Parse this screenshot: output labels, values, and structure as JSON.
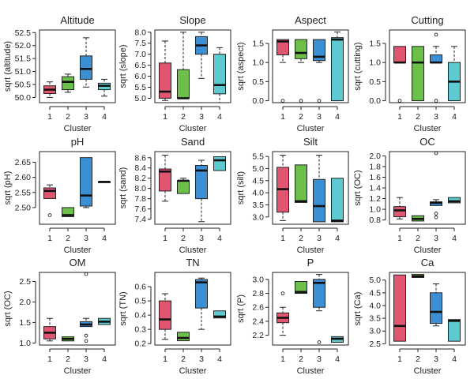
{
  "colors": {
    "1": "#e0556f",
    "2": "#6cc04a",
    "3": "#3d8fd4",
    "4": "#5dc9d1"
  },
  "chart_data": [
    {
      "type": "box",
      "title": "Altitude",
      "xlabel": "Cluster",
      "ylabel": "sqrt (altitude)",
      "categories": [
        "1",
        "2",
        "3",
        "4"
      ],
      "ylim": [
        49.8,
        52.6
      ],
      "yticks": [
        50.0,
        50.5,
        51.0,
        51.5,
        52.0,
        52.5
      ],
      "ytick_labels": [
        "50.0",
        "50.5",
        "51.0",
        "51.5",
        "52.0",
        "52.5"
      ],
      "boxes": [
        {
          "min": 50.0,
          "q1": 50.15,
          "median": 50.3,
          "q3": 50.45,
          "max": 50.6,
          "outliers": []
        },
        {
          "min": 50.2,
          "q1": 50.3,
          "median": 50.6,
          "q3": 50.8,
          "max": 50.9,
          "outliers": []
        },
        {
          "min": 50.4,
          "q1": 50.7,
          "median": 51.1,
          "q3": 51.6,
          "max": 52.3,
          "outliers": []
        },
        {
          "min": 50.05,
          "q1": 50.3,
          "median": 50.45,
          "q3": 50.55,
          "max": 50.7,
          "outliers": []
        }
      ]
    },
    {
      "type": "box",
      "title": "Slope",
      "xlabel": "Cluster",
      "ylabel": "sqrt (slope)",
      "categories": [
        "1",
        "2",
        "3",
        "4"
      ],
      "ylim": [
        4.8,
        8.1
      ],
      "yticks": [
        5.0,
        5.5,
        6.0,
        6.5,
        7.0,
        7.5,
        8.0
      ],
      "ytick_labels": [
        "5.0",
        "5.5",
        "6.0",
        "6.5",
        "7.0",
        "7.5",
        "8.0"
      ],
      "boxes": [
        {
          "min": 4.9,
          "q1": 5.0,
          "median": 5.3,
          "q3": 6.6,
          "max": 7.6,
          "outliers": []
        },
        {
          "min": 5.0,
          "q1": 5.0,
          "median": 5.0,
          "q3": 6.3,
          "max": 8.0,
          "outliers": []
        },
        {
          "min": 5.9,
          "q1": 7.0,
          "median": 7.4,
          "q3": 7.8,
          "max": 8.0,
          "outliers": []
        },
        {
          "min": 4.8,
          "q1": 5.2,
          "median": 5.6,
          "q3": 7.0,
          "max": 7.3,
          "outliers": []
        }
      ]
    },
    {
      "type": "box",
      "title": "Aspect",
      "xlabel": "Cluster",
      "ylabel": "sqrt (aspect)",
      "categories": [
        "1",
        "2",
        "3",
        "4"
      ],
      "ylim": [
        -0.05,
        1.85
      ],
      "yticks": [
        0.0,
        0.5,
        1.0,
        1.5
      ],
      "ytick_labels": [
        "0.0",
        "0.5",
        "1.0",
        "1.5"
      ],
      "boxes": [
        {
          "min": 1.0,
          "q1": 1.2,
          "median": 1.55,
          "q3": 1.6,
          "max": 1.6,
          "outliers": [
            0.0
          ]
        },
        {
          "min": 1.0,
          "q1": 1.1,
          "median": 1.25,
          "q3": 1.6,
          "max": 1.6,
          "outliers": [
            0.0
          ]
        },
        {
          "min": 1.0,
          "q1": 1.05,
          "median": 1.15,
          "q3": 1.6,
          "max": 1.6,
          "outliers": [
            0.0
          ]
        },
        {
          "min": 0.0,
          "q1": 0.0,
          "median": 1.6,
          "q3": 1.65,
          "max": 1.8,
          "outliers": []
        }
      ]
    },
    {
      "type": "box",
      "title": "Cutting",
      "xlabel": "Cluster",
      "ylabel": "sqrt (cutting)",
      "categories": [
        "1",
        "2",
        "3",
        "4"
      ],
      "ylim": [
        -0.05,
        1.85
      ],
      "yticks": [
        0.0,
        0.5,
        1.0,
        1.5
      ],
      "ytick_labels": [
        "0.0",
        "0.5",
        "1.0",
        "1.5"
      ],
      "boxes": [
        {
          "min": 1.0,
          "q1": 1.0,
          "median": 1.0,
          "q3": 1.42,
          "max": 1.42,
          "outliers": [
            0.0
          ]
        },
        {
          "min": 0.0,
          "q1": 0.0,
          "median": 1.0,
          "q3": 1.42,
          "max": 1.42,
          "outliers": []
        },
        {
          "min": 1.0,
          "q1": 1.0,
          "median": 1.0,
          "q3": 1.2,
          "max": 1.42,
          "outliers": [
            1.73,
            0.0
          ]
        },
        {
          "min": 0.0,
          "q1": 0.0,
          "median": 0.5,
          "q3": 1.0,
          "max": 1.42,
          "outliers": []
        }
      ]
    },
    {
      "type": "box",
      "title": "pH",
      "xlabel": "Cluster",
      "ylabel": "sqrt (pH)",
      "categories": [
        "1",
        "2",
        "3",
        "4"
      ],
      "ylim": [
        2.445,
        2.685
      ],
      "yticks": [
        2.5,
        2.55,
        2.6,
        2.65
      ],
      "ytick_labels": [
        "2.50",
        "2.55",
        "2.60",
        "2.65"
      ],
      "boxes": [
        {
          "min": 2.53,
          "q1": 2.53,
          "median": 2.555,
          "q3": 2.565,
          "max": 2.575,
          "outliers": [
            2.475
          ]
        },
        {
          "min": 2.47,
          "q1": 2.47,
          "median": 2.475,
          "q3": 2.5,
          "max": 2.5,
          "outliers": []
        },
        {
          "min": 2.5,
          "q1": 2.505,
          "median": 2.54,
          "q3": 2.665,
          "max": 2.665,
          "outliers": []
        },
        {
          "min": 2.585,
          "q1": 2.585,
          "median": 2.585,
          "q3": 2.585,
          "max": 2.585,
          "outliers": []
        }
      ]
    },
    {
      "type": "box",
      "title": "Sand",
      "xlabel": "Cluster",
      "ylabel": "sqrt (sand)",
      "categories": [
        "1",
        "2",
        "3",
        "4"
      ],
      "ylim": [
        7.3,
        8.72
      ],
      "yticks": [
        7.4,
        7.6,
        7.8,
        8.0,
        8.2,
        8.4,
        8.6
      ],
      "ytick_labels": [
        "7.4",
        "7.6",
        "7.8",
        "8.0",
        "8.2",
        "8.4",
        "8.6"
      ],
      "boxes": [
        {
          "min": 7.75,
          "q1": 7.95,
          "median": 8.33,
          "q3": 8.38,
          "max": 8.65,
          "outliers": []
        },
        {
          "min": 7.9,
          "q1": 7.9,
          "median": 8.15,
          "q3": 8.15,
          "max": 8.2,
          "outliers": []
        },
        {
          "min": 7.35,
          "q1": 7.8,
          "median": 8.35,
          "q3": 8.45,
          "max": 8.55,
          "outliers": []
        },
        {
          "min": 8.35,
          "q1": 8.35,
          "median": 8.55,
          "q3": 8.62,
          "max": 8.62,
          "outliers": []
        }
      ]
    },
    {
      "type": "box",
      "title": "Silt",
      "xlabel": "Cluster",
      "ylabel": "sqrt (silt)",
      "categories": [
        "1",
        "2",
        "3",
        "4"
      ],
      "ylim": [
        2.7,
        5.7
      ],
      "yticks": [
        3.0,
        3.5,
        4.0,
        4.5,
        5.0,
        5.5
      ],
      "ytick_labels": [
        "3.0",
        "3.5",
        "4.0",
        "4.5",
        "5.0",
        "5.5"
      ],
      "boxes": [
        {
          "min": 2.85,
          "q1": 3.2,
          "median": 4.15,
          "q3": 5.05,
          "max": 5.55,
          "outliers": []
        },
        {
          "min": 3.6,
          "q1": 3.6,
          "median": 3.65,
          "q3": 5.15,
          "max": 5.15,
          "outliers": []
        },
        {
          "min": 2.8,
          "q1": 2.8,
          "median": 3.45,
          "q3": 4.55,
          "max": 5.55,
          "outliers": []
        },
        {
          "min": 2.8,
          "q1": 2.8,
          "median": 2.85,
          "q3": 4.6,
          "max": 4.6,
          "outliers": []
        }
      ]
    },
    {
      "type": "box",
      "title": "OC",
      "xlabel": "Cluster",
      "ylabel": "sqrt (OC)",
      "categories": [
        "1",
        "2",
        "3",
        "4"
      ],
      "ylim": [
        0.72,
        2.08
      ],
      "yticks": [
        0.8,
        1.0,
        1.2,
        1.4,
        1.6,
        1.8,
        2.0
      ],
      "ytick_labels": [
        "0.8",
        "1.0",
        "1.2",
        "1.4",
        "1.6",
        "1.8",
        "2.0"
      ],
      "boxes": [
        {
          "min": 0.82,
          "q1": 0.86,
          "median": 0.98,
          "q3": 1.05,
          "max": 1.22,
          "outliers": []
        },
        {
          "min": 0.78,
          "q1": 0.78,
          "median": 0.82,
          "q3": 0.88,
          "max": 0.88,
          "outliers": []
        },
        {
          "min": 1.07,
          "q1": 1.07,
          "median": 1.12,
          "q3": 1.14,
          "max": 1.18,
          "outliers": [
            2.05,
            0.92,
            0.85
          ]
        },
        {
          "min": 1.12,
          "q1": 1.12,
          "median": 1.15,
          "q3": 1.22,
          "max": 1.22,
          "outliers": []
        }
      ]
    },
    {
      "type": "box",
      "title": "OM",
      "xlabel": "Cluster",
      "ylabel": "sqrt (OC)",
      "categories": [
        "1",
        "2",
        "3",
        "4"
      ],
      "ylim": [
        0.95,
        2.72
      ],
      "yticks": [
        1.0,
        1.5,
        2.0,
        2.5
      ],
      "ytick_labels": [
        "1.0",
        "1.5",
        "2.0",
        "2.5"
      ],
      "boxes": [
        {
          "min": 1.05,
          "q1": 1.1,
          "median": 1.25,
          "q3": 1.4,
          "max": 1.6,
          "outliers": []
        },
        {
          "min": 1.05,
          "q1": 1.05,
          "median": 1.1,
          "q3": 1.15,
          "max": 1.15,
          "outliers": []
        },
        {
          "min": 1.4,
          "q1": 1.4,
          "median": 1.45,
          "q3": 1.52,
          "max": 1.6,
          "outliers": [
            2.68,
            1.18,
            1.05
          ]
        },
        {
          "min": 1.45,
          "q1": 1.45,
          "median": 1.52,
          "q3": 1.6,
          "max": 1.6,
          "outliers": []
        }
      ]
    },
    {
      "type": "box",
      "title": "TN",
      "xlabel": "Cluster",
      "ylabel": "sqrt (TN)",
      "categories": [
        "1",
        "2",
        "3",
        "4"
      ],
      "ylim": [
        0.19,
        0.7
      ],
      "yticks": [
        0.2,
        0.3,
        0.4,
        0.5,
        0.6
      ],
      "ytick_labels": [
        "0.2",
        "0.3",
        "0.4",
        "0.5",
        "0.6"
      ],
      "boxes": [
        {
          "min": 0.23,
          "q1": 0.3,
          "median": 0.37,
          "q3": 0.5,
          "max": 0.55,
          "outliers": []
        },
        {
          "min": 0.22,
          "q1": 0.22,
          "median": 0.24,
          "q3": 0.28,
          "max": 0.28,
          "outliers": []
        },
        {
          "min": 0.3,
          "q1": 0.45,
          "median": 0.63,
          "q3": 0.65,
          "max": 0.66,
          "outliers": []
        },
        {
          "min": 0.38,
          "q1": 0.38,
          "median": 0.39,
          "q3": 0.43,
          "max": 0.43,
          "outliers": []
        }
      ]
    },
    {
      "type": "box",
      "title": "P",
      "xlabel": "Cluster",
      "ylabel": "sqrt (P)",
      "categories": [
        "1",
        "2",
        "3",
        "4"
      ],
      "ylim": [
        2.06,
        3.1
      ],
      "yticks": [
        2.2,
        2.4,
        2.6,
        2.8,
        3.0
      ],
      "ytick_labels": [
        "2.2",
        "2.4",
        "2.6",
        "2.8",
        "3.0"
      ],
      "boxes": [
        {
          "min": 2.2,
          "q1": 2.38,
          "median": 2.45,
          "q3": 2.52,
          "max": 2.6,
          "outliers": [
            2.8
          ]
        },
        {
          "min": 2.8,
          "q1": 2.8,
          "median": 2.82,
          "q3": 2.97,
          "max": 2.97,
          "outliers": []
        },
        {
          "min": 2.55,
          "q1": 2.6,
          "median": 2.95,
          "q3": 3.0,
          "max": 3.07,
          "outliers": [
            2.1
          ]
        },
        {
          "min": 2.1,
          "q1": 2.1,
          "median": 2.15,
          "q3": 2.18,
          "max": 2.18,
          "outliers": []
        }
      ]
    },
    {
      "type": "box",
      "title": "Ca",
      "xlabel": "Cluster",
      "ylabel": "sqrt (Ca)",
      "categories": [
        "1",
        "2",
        "3",
        "4"
      ],
      "ylim": [
        2.45,
        5.3
      ],
      "yticks": [
        2.5,
        3.0,
        3.5,
        4.0,
        4.5,
        5.0
      ],
      "ytick_labels": [
        "2.5",
        "3.0",
        "3.5",
        "4.0",
        "4.5",
        "5.0"
      ],
      "boxes": [
        {
          "min": 2.6,
          "q1": 2.6,
          "median": 3.2,
          "q3": 5.2,
          "max": 5.2,
          "outliers": []
        },
        {
          "min": 5.1,
          "q1": 5.1,
          "median": 5.15,
          "q3": 5.22,
          "max": 5.22,
          "outliers": []
        },
        {
          "min": 3.2,
          "q1": 3.3,
          "median": 3.75,
          "q3": 4.5,
          "max": 4.85,
          "outliers": []
        },
        {
          "min": 2.6,
          "q1": 2.6,
          "median": 3.4,
          "q3": 3.45,
          "max": 3.45,
          "outliers": []
        }
      ]
    }
  ]
}
